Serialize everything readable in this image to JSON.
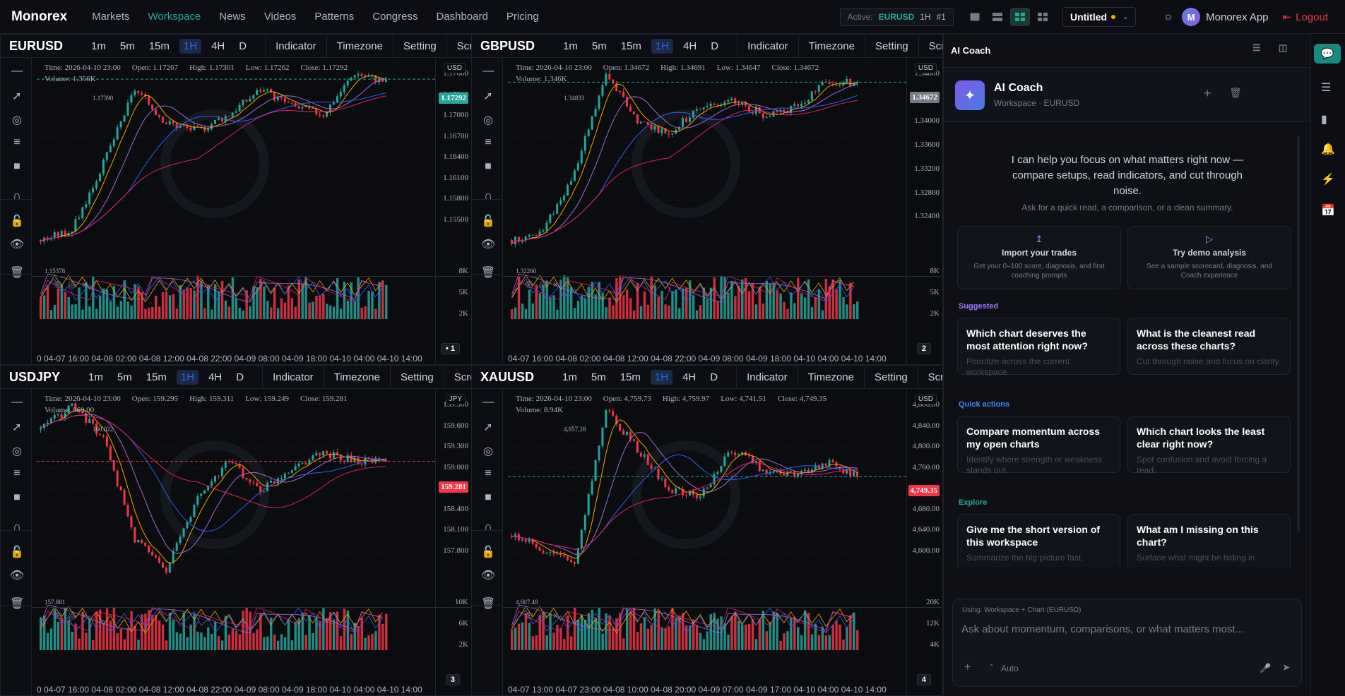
{
  "brand": "Monorex",
  "nav": [
    {
      "label": "Markets",
      "active": false
    },
    {
      "label": "Workspace",
      "active": true
    },
    {
      "label": "News",
      "active": false
    },
    {
      "label": "Videos",
      "active": false
    },
    {
      "label": "Patterns",
      "active": false
    },
    {
      "label": "Congress",
      "active": false
    },
    {
      "label": "Dashboard",
      "active": false
    },
    {
      "label": "Pricing",
      "active": false
    }
  ],
  "status": {
    "active_label": "Active:",
    "symbol": "EURUSD",
    "timeframe": "1H",
    "slot": "#1"
  },
  "workspace": {
    "name": "Untitled"
  },
  "user": {
    "initial": "M",
    "name": "Monorex App"
  },
  "logout_label": "Logout",
  "colors": {
    "accent": "#26a69a",
    "up": "#26a69a",
    "down": "#f23645",
    "brand_purple": "#7b5be5"
  },
  "timeframes": [
    "1m",
    "5m",
    "15m",
    "1H",
    "4H",
    "D"
  ],
  "chart_buttons": [
    "Indicator",
    "Timezone",
    "Setting",
    "Screen"
  ],
  "charts": [
    {
      "symbol": "EURUSD",
      "currency": "USD",
      "panel": "• 1",
      "legend": {
        "time": "Time: 2026-04-10 23:00",
        "open": "Open: 1.17267",
        "high": "High: 1.17301",
        "low": "Low: 1.17262",
        "close": "Close: 1.17292"
      },
      "volume_label": "Volume: 1.356K",
      "last_price": "1.17292",
      "price_ticks": [
        "1.17600",
        "1.17300",
        "1.17000",
        "1.16700",
        "1.16400",
        "1.16100",
        "1.15800",
        "1.15500"
      ],
      "vol_ticks": [
        "8K",
        "5K",
        "2K"
      ],
      "time_axis": "0 04-07 16:00 04-08 02:00 04-08 12:00 04-08 22:00 04-09 08:00 04-09 18:00 04-10 04:00 04-10 14:00",
      "high_mark": "1.17390",
      "low_mark": "1.15378"
    },
    {
      "symbol": "GBPUSD",
      "currency": "USD",
      "panel": "2",
      "legend": {
        "time": "Time: 2026-04-10 23:00",
        "open": "Open: 1.34672",
        "high": "High: 1.34691",
        "low": "Low: 1.34647",
        "close": "Close: 1.34672"
      },
      "volume_label": "Volume: 1.346K",
      "last_price": "1.34672",
      "price_ticks": [
        "1.34800",
        "1.34400",
        "1.34000",
        "1.33600",
        "1.33200",
        "1.32800",
        "1.32400"
      ],
      "vol_ticks": [
        "8K",
        "5K",
        "2K"
      ],
      "time_axis": "04-07 16:00 04-08 02:00 04-08 12:00 04-08 22:00 04-09 08:00 04-09 18:00 04-10 04:00 04-10 14:00",
      "high_mark": "1.34833",
      "low_mark": "1.32260"
    },
    {
      "symbol": "USDJPY",
      "currency": "JPY",
      "panel": "3",
      "legend": {
        "time": "Time: 2026-04-10 23:00",
        "open": "Open: 159.295",
        "high": "High: 159.311",
        "low": "Low: 159.249",
        "close": "Close: 159.281"
      },
      "volume_label": "Volume: 860.00",
      "last_price": "159.281",
      "price_ticks": [
        "159.900",
        "159.600",
        "159.300",
        "159.000",
        "158.700",
        "158.400",
        "158.100",
        "157.800"
      ],
      "vol_ticks": [
        "10K",
        "6K",
        "2K"
      ],
      "time_axis": "0 04-07 16:00 04-08 02:00 04-08 12:00 04-08 22:00 04-09 08:00 04-09 18:00 04-10 04:00 04-10 14:00",
      "high_mark": "160.022",
      "low_mark": "157.881"
    },
    {
      "symbol": "XAUUSD",
      "currency": "USD",
      "panel": "4",
      "legend": {
        "time": "Time: 2026-04-10 23:00",
        "open": "Open: 4,759.73",
        "high": "High: 4,759.97",
        "low": "Low: 4,741.51",
        "close": "Close: 4,749.35"
      },
      "volume_label": "Volume: 8.94K",
      "last_price": "4,749.35",
      "price_ticks": [
        "4,880.00",
        "4,840.00",
        "4,800.00",
        "4,760.00",
        "4,720.00",
        "4,680.00",
        "4,640.00",
        "4,600.00"
      ],
      "vol_ticks": [
        "20K",
        "12K",
        "4K"
      ],
      "time_axis": "04-07 13:00 04-07 23:00 04-08 10:00 04-08 20:00 04-09 07:00 04-09 17:00 04-10 04:00 04-10 14:00",
      "high_mark": "4,857.28",
      "low_mark": "4,607.48"
    }
  ],
  "coach": {
    "panel_title": "AI Coach",
    "name": "AI Coach",
    "context": "Workspace · EURUSD",
    "intro": "I can help you focus on what matters right now — compare setups, read indicators, and cut through noise.",
    "intro_sub": "Ask for a quick read, a comparison, or a clean summary.",
    "cards": [
      {
        "title": "Import your trades",
        "desc": "Get your 0–100 score, diagnosis, and first coaching prompts"
      },
      {
        "title": "Try demo analysis",
        "desc": "See a sample scorecard, diagnosis, and Coach experience"
      }
    ],
    "sections": {
      "suggested": "Suggested",
      "quick": "Quick actions",
      "explore": "Explore"
    },
    "suggested": [
      {
        "title": "Which chart deserves the most attention right now?",
        "desc": "Prioritize across the current workspace."
      },
      {
        "title": "What is the cleanest read across these charts?",
        "desc": "Cut through noise and focus on clarity."
      }
    ],
    "quick": [
      {
        "title": "Compare momentum across my open charts",
        "desc": "Identify where strength or weakness stands out."
      },
      {
        "title": "Which chart looks the least clear right now?",
        "desc": "Spot confusion and avoid forcing a read."
      }
    ],
    "explore": [
      {
        "title": "Give me the short version of this workspace",
        "desc": "Summarize the big picture fast."
      },
      {
        "title": "What am I missing on this chart?",
        "desc": "Surface what might be hiding in"
      }
    ],
    "input_context": "Using: Workspace + Chart (EURUSD)",
    "input_placeholder": "Ask about momentum, comparisons, or what matters most...",
    "mode": "Auto"
  },
  "chart_data": [
    {
      "type": "candlestick",
      "symbol": "EURUSD",
      "title": "EURUSD",
      "timeframe": "1H",
      "ylim": [
        1.1538,
        1.1739
      ],
      "x": [
        "04-07 16:00",
        "04-08 02:00",
        "04-08 12:00",
        "04-08 22:00",
        "04-09 08:00",
        "04-09 18:00",
        "04-10 04:00",
        "04-10 14:00"
      ],
      "close_path": [
        1.1538,
        1.155,
        1.163,
        1.172,
        1.168,
        1.167,
        1.169,
        1.172,
        1.17,
        1.169,
        1.174,
        1.1729
      ],
      "high": 1.1739,
      "low": 1.15378
    },
    {
      "type": "candlestick",
      "symbol": "GBPUSD",
      "title": "GBPUSD",
      "timeframe": "1H",
      "ylim": [
        1.3226,
        1.3483
      ],
      "x": [
        "04-07 16:00",
        "04-08 02:00",
        "04-08 12:00",
        "04-08 22:00",
        "04-09 08:00",
        "04-09 18:00",
        "04-10 04:00",
        "04-10 14:00"
      ],
      "close_path": [
        1.3226,
        1.324,
        1.333,
        1.348,
        1.341,
        1.339,
        1.343,
        1.344,
        1.342,
        1.343,
        1.347,
        1.3467
      ],
      "high": 1.34833,
      "low": 1.3226
    },
    {
      "type": "candlestick",
      "symbol": "USDJPY",
      "title": "USDJPY",
      "timeframe": "1H",
      "ylim": [
        157.88,
        160.02
      ],
      "x": [
        "04-07 16:00",
        "04-08 02:00",
        "04-08 12:00",
        "04-08 22:00",
        "04-09 08:00",
        "04-09 18:00",
        "04-10 04:00",
        "04-10 14:00"
      ],
      "close_path": [
        159.7,
        160.0,
        159.6,
        158.3,
        157.9,
        158.8,
        159.3,
        158.9,
        159.2,
        159.4,
        159.3,
        159.28
      ],
      "high": 160.022,
      "low": 157.881
    },
    {
      "type": "candlestick",
      "symbol": "XAUUSD",
      "title": "XAUUSD",
      "timeframe": "1H",
      "ylim": [
        4607.48,
        4857.28
      ],
      "x": [
        "04-07 13:00",
        "04-07 23:00",
        "04-08 10:00",
        "04-08 20:00",
        "04-09 07:00",
        "04-09 17:00",
        "04-10 04:00",
        "04-10 14:00"
      ],
      "close_path": [
        4660,
        4640,
        4620,
        4850,
        4790,
        4730,
        4720,
        4790,
        4760,
        4750,
        4770,
        4749.35
      ],
      "high": 4857.28,
      "low": 4607.48
    }
  ]
}
